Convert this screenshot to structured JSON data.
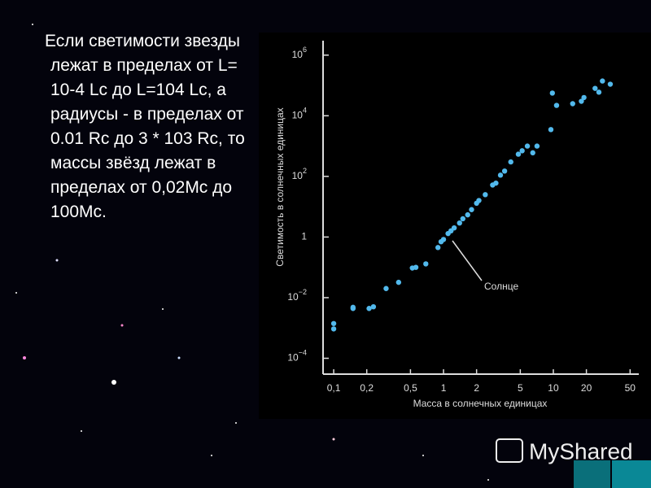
{
  "slide_text": "Если светимости звезды лежат в пределах от L= 10-4 Lс до L=104 Lс, а радиусы - в пределах  от 0.01 Rс до 3 * 103 Rс, то массы звёзд лежат в пределах от 0,02Mс до 100Mс.",
  "watermark": "MyShared",
  "chart_data": {
    "type": "scatter",
    "x_label": "Масса в солнечных единицах",
    "y_label": "Светимость в солнечных единицах",
    "annotation": "Солнце",
    "log_x": true,
    "log_y": true,
    "xlim": [
      0.08,
      60
    ],
    "xticks": [
      {
        "value": 0.1,
        "label": "0,1"
      },
      {
        "value": 0.2,
        "label": "0,2"
      },
      {
        "value": 0.5,
        "label": "0,5"
      },
      1,
      2,
      5,
      10,
      20,
      50
    ],
    "ylim": [
      3e-05,
      3000000
    ],
    "yticks": [
      {
        "value": 0.0001,
        "label": "10−4"
      },
      {
        "value": 0.01,
        "label": "10−2"
      },
      1,
      {
        "value": 100,
        "label": "102"
      },
      {
        "value": 10000,
        "label": "104"
      },
      {
        "value": 1000000,
        "label": "106"
      }
    ],
    "color": "#52b9ec",
    "x": [
      0.1,
      0.1,
      0.15,
      0.15,
      0.21,
      0.23,
      0.3,
      0.39,
      0.52,
      0.56,
      0.69,
      0.89,
      0.95,
      1.0,
      1.1,
      1.17,
      1.25,
      1.4,
      1.5,
      1.66,
      1.8,
      2.0,
      2.1,
      2.4,
      2.8,
      3.0,
      3.3,
      3.6,
      4.1,
      4.8,
      5.2,
      5.8,
      7.1,
      6.5,
      9.5,
      10.7,
      9.8,
      18,
      19,
      15,
      28,
      33,
      24,
      26
    ],
    "y": [
      0.0014,
      0.00093,
      0.0044,
      0.0048,
      0.0044,
      0.005,
      0.02,
      0.032,
      0.095,
      0.1,
      0.13,
      0.45,
      0.7,
      0.83,
      1.3,
      1.6,
      2,
      2.9,
      4,
      5.4,
      8,
      13,
      16,
      25,
      52,
      60,
      110,
      150,
      300,
      540,
      700,
      1000,
      1000,
      600,
      3500,
      22000,
      56000,
      30000,
      40000,
      25000,
      140000,
      110000,
      80000,
      60000
    ]
  }
}
